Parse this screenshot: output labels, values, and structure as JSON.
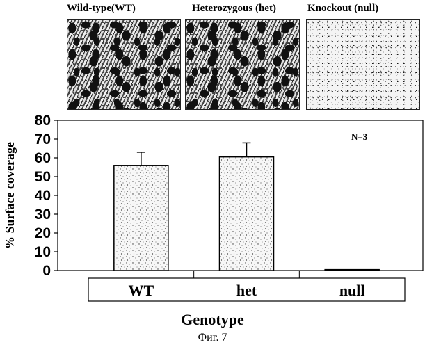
{
  "panels": [
    {
      "title": "Wild-type(WT)",
      "texture": "dense"
    },
    {
      "title": "Heterozygous (het)",
      "texture": "dense"
    },
    {
      "title": "Knockout (null)",
      "texture": "sparse"
    }
  ],
  "chart_data": {
    "type": "bar",
    "categories": [
      "WT",
      "het",
      "null"
    ],
    "values": [
      56,
      60.5,
      0.5
    ],
    "errors": [
      7,
      7.5,
      0.3
    ],
    "ylabel": "% Surface coverage",
    "xlabel": "Genotype",
    "ylim": [
      0,
      80
    ],
    "yticks": [
      0,
      10,
      20,
      30,
      40,
      50,
      60,
      70,
      80
    ],
    "annotation": "N=3",
    "grid": false,
    "bar_fill": "stippled"
  },
  "figure_caption": "Фиг. 7"
}
